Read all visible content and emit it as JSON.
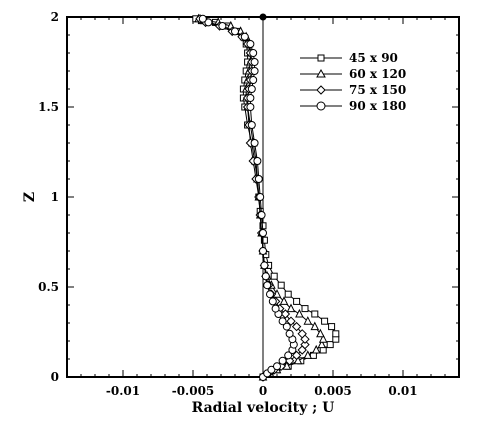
{
  "chart_data": {
    "type": "line",
    "title": "",
    "xlabel": "Radial velocity ; U",
    "ylabel": "Z",
    "xlim": [
      -0.014,
      0.014
    ],
    "ylim": [
      0,
      2
    ],
    "xticks": [
      -0.01,
      -0.005,
      0,
      0.005,
      0.01
    ],
    "xtick_labels": [
      "-0.01",
      "-0.005",
      "0",
      "0.005",
      "0.01"
    ],
    "yticks": [
      0,
      0.5,
      1,
      1.5,
      2
    ],
    "ytick_labels": [
      "0",
      "0.5",
      "1",
      "1.5",
      "2"
    ],
    "grid": false,
    "legend_position": "top-right",
    "series": [
      {
        "name": "45 x 90",
        "marker": "square",
        "x": [
          0.0,
          0.0005,
          0.001,
          0.0018,
          0.0027,
          0.0036,
          0.0043,
          0.0048,
          0.0052,
          0.0052,
          0.0049,
          0.0044,
          0.0037,
          0.003,
          0.0024,
          0.0018,
          0.0013,
          0.0008,
          0.0004,
          0.0002,
          0.0001,
          0.0,
          -0.0002,
          -0.0003,
          -0.0004,
          -0.0006,
          -0.0008,
          -0.0011,
          -0.0013,
          -0.0014,
          -0.0014,
          -0.0013,
          -0.0012,
          -0.0011,
          -0.0011,
          -0.0012,
          -0.0014,
          -0.0018,
          -0.0025,
          -0.0034,
          -0.0044,
          -0.0048
        ],
        "y": [
          0.0,
          0.02,
          0.04,
          0.06,
          0.09,
          0.12,
          0.15,
          0.18,
          0.21,
          0.24,
          0.28,
          0.31,
          0.35,
          0.38,
          0.42,
          0.46,
          0.51,
          0.56,
          0.62,
          0.68,
          0.76,
          0.84,
          0.92,
          1.0,
          1.1,
          1.2,
          1.3,
          1.4,
          1.5,
          1.55,
          1.6,
          1.65,
          1.7,
          1.75,
          1.8,
          1.85,
          1.89,
          1.92,
          1.95,
          1.97,
          1.98,
          1.99
        ]
      },
      {
        "name": "60 x 120",
        "marker": "triangle",
        "x": [
          0.0,
          0.0005,
          0.001,
          0.0017,
          0.0025,
          0.0032,
          0.0038,
          0.0042,
          0.0043,
          0.0041,
          0.0037,
          0.0032,
          0.0026,
          0.002,
          0.0015,
          0.001,
          0.0006,
          0.0003,
          0.0001,
          0.0,
          -0.0001,
          -0.0002,
          -0.0003,
          -0.0004,
          -0.0005,
          -0.0007,
          -0.0009,
          -0.0011,
          -0.0012,
          -0.0012,
          -0.0011,
          -0.001,
          -0.0009,
          -0.0009,
          -0.001,
          -0.0012,
          -0.0016,
          -0.0023,
          -0.0032,
          -0.0042,
          -0.0046
        ],
        "y": [
          0.0,
          0.02,
          0.04,
          0.06,
          0.09,
          0.12,
          0.15,
          0.18,
          0.21,
          0.24,
          0.28,
          0.31,
          0.35,
          0.38,
          0.42,
          0.46,
          0.51,
          0.56,
          0.62,
          0.7,
          0.8,
          0.9,
          1.0,
          1.1,
          1.2,
          1.3,
          1.4,
          1.5,
          1.55,
          1.6,
          1.65,
          1.7,
          1.75,
          1.8,
          1.85,
          1.89,
          1.92,
          1.95,
          1.97,
          1.98,
          1.99
        ]
      },
      {
        "name": "75 x 150",
        "marker": "diamond",
        "x": [
          0.0,
          0.0004,
          0.0008,
          0.0013,
          0.0019,
          0.0024,
          0.0028,
          0.003,
          0.003,
          0.0028,
          0.0024,
          0.002,
          0.0016,
          0.0012,
          0.0009,
          0.0006,
          0.0004,
          0.0002,
          0.0001,
          0.0,
          -0.0001,
          -0.0002,
          -0.0003,
          -0.0005,
          -0.0007,
          -0.0009,
          -0.001,
          -0.0011,
          -0.0011,
          -0.001,
          -0.0009,
          -0.0008,
          -0.0008,
          -0.0009,
          -0.0011,
          -0.0015,
          -0.0022,
          -0.0031,
          -0.0041,
          -0.0045
        ],
        "y": [
          0.0,
          0.02,
          0.04,
          0.06,
          0.09,
          0.12,
          0.15,
          0.18,
          0.21,
          0.24,
          0.28,
          0.31,
          0.35,
          0.38,
          0.42,
          0.46,
          0.51,
          0.56,
          0.62,
          0.7,
          0.8,
          0.9,
          1.0,
          1.1,
          1.2,
          1.3,
          1.4,
          1.5,
          1.55,
          1.6,
          1.65,
          1.7,
          1.75,
          1.8,
          1.85,
          1.89,
          1.92,
          1.95,
          1.97,
          1.99
        ]
      },
      {
        "name": "90 x 180",
        "marker": "circle",
        "x": [
          0.0,
          0.0003,
          0.0006,
          0.001,
          0.0014,
          0.0018,
          0.0021,
          0.0022,
          0.0021,
          0.0019,
          0.0017,
          0.0014,
          0.0011,
          0.0009,
          0.0007,
          0.0005,
          0.0003,
          0.0002,
          0.0001,
          0.0,
          0.0,
          -0.0001,
          -0.0002,
          -0.0003,
          -0.0004,
          -0.0006,
          -0.0008,
          -0.0009,
          -0.0009,
          -0.0008,
          -0.0007,
          -0.0006,
          -0.0006,
          -0.0007,
          -0.0009,
          -0.0013,
          -0.002,
          -0.0029,
          -0.0039,
          -0.0043
        ],
        "y": [
          0.0,
          0.02,
          0.04,
          0.06,
          0.09,
          0.12,
          0.15,
          0.18,
          0.21,
          0.24,
          0.28,
          0.31,
          0.35,
          0.38,
          0.42,
          0.46,
          0.51,
          0.56,
          0.62,
          0.7,
          0.8,
          0.9,
          1.0,
          1.1,
          1.2,
          1.3,
          1.4,
          1.5,
          1.55,
          1.6,
          1.65,
          1.7,
          1.75,
          1.8,
          1.85,
          1.89,
          1.92,
          1.95,
          1.97,
          1.99
        ]
      }
    ],
    "point": {
      "x": 0,
      "y": 2
    }
  }
}
